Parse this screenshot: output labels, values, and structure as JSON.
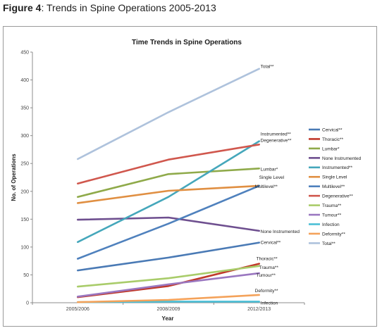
{
  "caption": {
    "figure_label": "Figure 4",
    "text": ": Trends in Spine Operations 2005-2013"
  },
  "chart_data": {
    "type": "line",
    "title": "Time Trends in Spine Operations",
    "xlabel": "Year",
    "ylabel": "No. of Operations",
    "categories": [
      "2005/2006",
      "2008/2009",
      "2012/2013"
    ],
    "ylim": [
      0,
      450
    ],
    "yticks": [
      0,
      50,
      100,
      150,
      200,
      250,
      300,
      350,
      400,
      450
    ],
    "grid": false,
    "legend_position": "right",
    "series": [
      {
        "name": "Cervical**",
        "label": "Cervical**",
        "color": "#4a7ab5",
        "values": [
          58,
          81,
          108
        ]
      },
      {
        "name": "Thoracic**",
        "label": "Thoracic**",
        "color": "#c0392b",
        "values": [
          10,
          30,
          70
        ]
      },
      {
        "name": "Lumbar*",
        "label": "Lumbar*",
        "color": "#8faa4a",
        "values": [
          190,
          231,
          241
        ]
      },
      {
        "name": "None Instrumented",
        "label": "None Instrumented",
        "color": "#6e4f8f",
        "values": [
          149,
          153,
          129
        ]
      },
      {
        "name": "Instrumented**",
        "label": "Instrumented**",
        "color": "#45a7bb",
        "values": [
          109,
          190,
          290
        ]
      },
      {
        "name": "Single Level",
        "label": "Single Level",
        "color": "#e08f42",
        "values": [
          179,
          201,
          210
        ]
      },
      {
        "name": "Multilevel**",
        "label": "Multilevel**",
        "color": "#4f81bd",
        "values": [
          79,
          142,
          210
        ]
      },
      {
        "name": "Degenerative**",
        "label": "Degenerative**",
        "color": "#d0574d",
        "values": [
          214,
          257,
          284
        ]
      },
      {
        "name": "Trauma**",
        "label": "Trauma**",
        "color": "#a9cc6a",
        "values": [
          29,
          44,
          66
        ]
      },
      {
        "name": "Tumour**",
        "label": "Tumour**",
        "color": "#9a77c0",
        "values": [
          11,
          33,
          53
        ]
      },
      {
        "name": "Infection",
        "label": "Infection",
        "color": "#4bbfd6",
        "values": [
          1,
          2,
          2
        ]
      },
      {
        "name": "Deformity**",
        "label": "Deformity**",
        "color": "#f4a25a",
        "values": [
          1,
          5,
          14
        ]
      },
      {
        "name": "Total**",
        "label": "Total**",
        "color": "#aec2dc",
        "values": [
          258,
          342,
          420
        ]
      }
    ]
  }
}
